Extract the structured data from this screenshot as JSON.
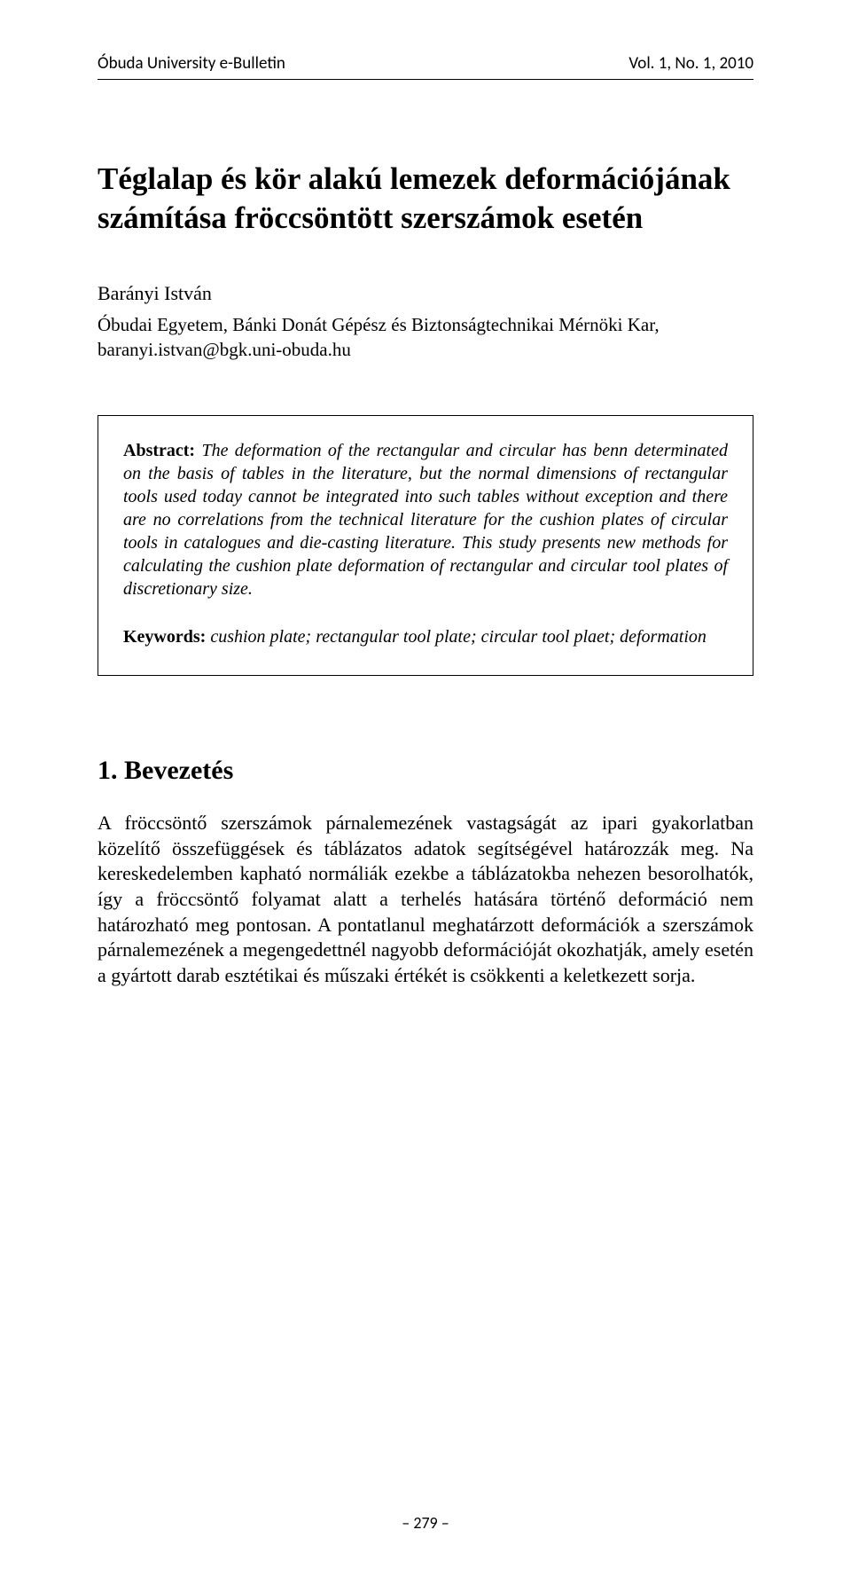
{
  "header": {
    "left": "Óbuda University e-Bulletin",
    "right": "Vol. 1, No. 1, 2010"
  },
  "title": "Téglalap és kör alakú lemezek deformációjának számítása fröccsöntött szerszámok esetén",
  "author": "Barányi István",
  "affiliation": "Óbudai Egyetem, Bánki Donát Gépész és Biztonságtechnikai Mérnöki Kar, baranyi.istvan@bgk.uni-obuda.hu",
  "abstract": {
    "label": "Abstract:",
    "text": " The deformation of the rectangular and circular has benn determinated on the basis of tables in the literature, but the normal dimensions of rectangular tools used today cannot be integrated into such tables without exception and there are no correlations from the technical literature for the cushion plates of circular tools in catalogues and die-casting literature. This study presents new methods for calculating the cushion plate deformation of rectangular and circular tool plates of discretionary size."
  },
  "keywords": {
    "label": "Keywords:",
    "text": " cushion plate; rectangular tool plate; circular tool plaet; deformation"
  },
  "section1": {
    "heading": "1.   Bevezetés",
    "body": "A fröccsöntő szerszámok párnalemezének vastagságát az ipari gyakorlatban közelítő összefüggések és táblázatos adatok segítségével határozzák meg. Na kereskedelemben kapható normáliák ezekbe a táblázatokba nehezen besorolhatók, így a fröccsöntő folyamat alatt a terhelés hatására történő deformáció nem határozható meg pontosan. A pontatlanul meghatárzott deformációk a szerszámok párnalemezének a megengedettnél nagyobb deformációját okozhatják, amely esetén a gyártott darab esztétikai és műszaki értékét  is csökkenti a keletkezett sorja."
  },
  "footer": "– 279 –"
}
